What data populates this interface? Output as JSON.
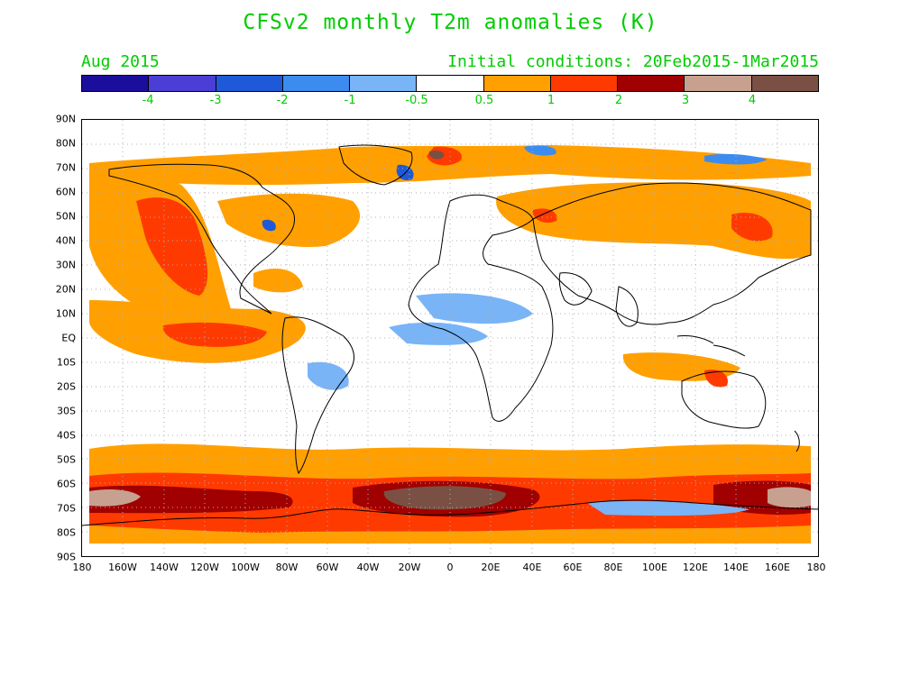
{
  "title": "CFSv2 monthly T2m anomalies (K)",
  "month_label": "Aug 2015",
  "init_label": "Initial conditions: 20Feb2015-1Mar2015",
  "colors": {
    "title_green": "#00cc00",
    "c_m4": "#1c0e9c",
    "c_m3": "#4a3ed6",
    "c_m2": "#1e5ad8",
    "c_m1": "#3c8cf0",
    "c_m05": "#78b4f6",
    "c_0": "#ffffff",
    "c_p05": "#ffa000",
    "c_p1": "#ff3a00",
    "c_p2": "#a00000",
    "c_p3": "#c8a090",
    "c_p4": "#7a5044"
  },
  "colorbar": {
    "swatches": [
      "#1c0e9c",
      "#4a3ed6",
      "#1e5ad8",
      "#3c8cf0",
      "#78b4f6",
      "#ffffff",
      "#ffa000",
      "#ff3a00",
      "#a00000",
      "#c8a090",
      "#7a5044"
    ],
    "labels": [
      "-4",
      "-3",
      "-2",
      "-1",
      "-0.5",
      "0.5",
      "1",
      "2",
      "3",
      "4"
    ]
  },
  "lat_labels": [
    "90N",
    "80N",
    "70N",
    "60N",
    "50N",
    "40N",
    "30N",
    "20N",
    "10N",
    "EQ",
    "10S",
    "20S",
    "30S",
    "40S",
    "50S",
    "60S",
    "70S",
    "80S",
    "90S"
  ],
  "lon_labels": [
    "180",
    "160W",
    "140W",
    "120W",
    "100W",
    "80W",
    "60W",
    "40W",
    "20W",
    "0",
    "20E",
    "40E",
    "60E",
    "80E",
    "100E",
    "120E",
    "140E",
    "160E",
    "180"
  ]
}
